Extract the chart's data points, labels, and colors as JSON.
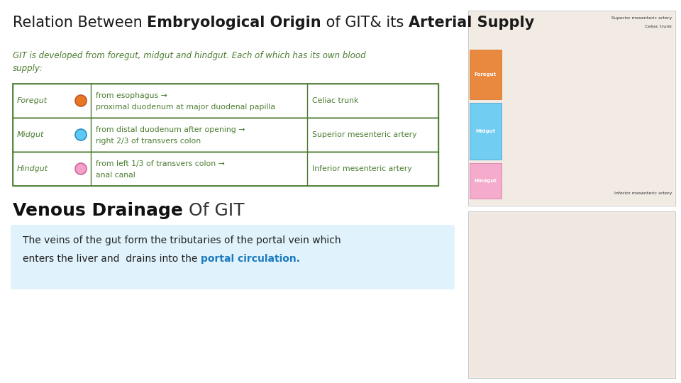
{
  "title_parts": [
    {
      "text": "Relation Between ",
      "bold": false,
      "size": 15
    },
    {
      "text": "Embryological Origin",
      "bold": true,
      "size": 15
    },
    {
      "text": " of GIT& its ",
      "bold": false,
      "size": 15
    },
    {
      "text": "Arterial Supply",
      "bold": true,
      "size": 15
    }
  ],
  "subtitle": "GIT is developed from foregut, midgut and hindgut. Each of which has its own blood\nsupply:",
  "subtitle_color": "#4a7c2f",
  "table_rows": [
    {
      "label": "Foregut",
      "circle_color": "#e87722",
      "circle_edge": "#c0582a",
      "desc_line1": "from esophagus →",
      "desc_line2": "proximal duodenum at major duodenal papilla",
      "artery": "Celiac trunk"
    },
    {
      "label": "Midgut",
      "circle_color": "#5bc8f5",
      "circle_edge": "#2a8fbf",
      "desc_line1": "from distal duodenum after opening →",
      "desc_line2": "right 2/3 of transvers colon",
      "artery": "Superior mesenteric artery"
    },
    {
      "label": "Hindgut",
      "circle_color": "#f5a0c8",
      "circle_edge": "#cc6699",
      "desc_line1": "from left 1/3 of transvers colon →",
      "desc_line2": "anal canal",
      "artery": "Inferior mesenteric artery"
    }
  ],
  "table_color": "#4a7c2f",
  "venous_title_bold": "Venous Drainage",
  "venous_title_rest": " Of GIT",
  "venous_box_bg": "#e0f2fb",
  "venous_text_normal": "The veins of the gut form the tributaries of the portal vein which\nenters the liver and  drains into the ",
  "venous_text_highlight": "portal circulation.",
  "venous_highlight_color": "#1a7abf",
  "bg_color": "#ffffff",
  "text_font": "DejaVu Sans",
  "title_font": "DejaVu Sans",
  "right_panel_top_color": "#f0ece8",
  "right_panel_bot_color": "#f0ece8"
}
